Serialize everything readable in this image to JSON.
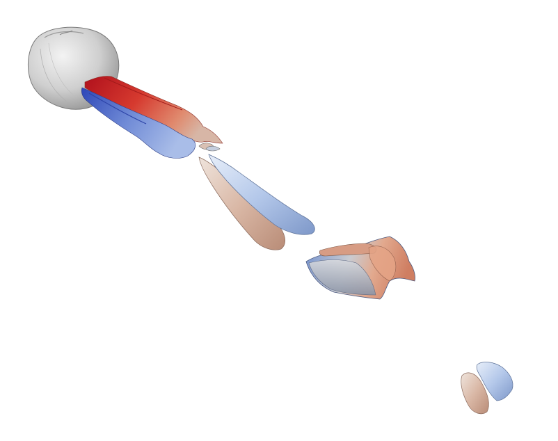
{
  "scene": {
    "background_color": "#ffffff",
    "colormap": {
      "negative": "#3a55c8",
      "neutral": "#c9c9c9",
      "positive": "#c0141e"
    },
    "objects": [
      {
        "id": "sphere-body",
        "color": "#c8c8c8"
      },
      {
        "id": "wake-red-upper",
        "color": "#d13a2e"
      },
      {
        "id": "wake-blue-lower",
        "color": "#5a77cf"
      },
      {
        "id": "vortex-pair-1-tan",
        "color": "#d8b4a4"
      },
      {
        "id": "vortex-pair-1-blue",
        "color": "#a9c0e6"
      },
      {
        "id": "vortex-cluster-2",
        "color": "#b8bfcc"
      },
      {
        "id": "vortex-pair-3-tan",
        "color": "#d9ac94"
      },
      {
        "id": "vortex-pair-3-blue",
        "color": "#a8c0ea"
      }
    ]
  }
}
